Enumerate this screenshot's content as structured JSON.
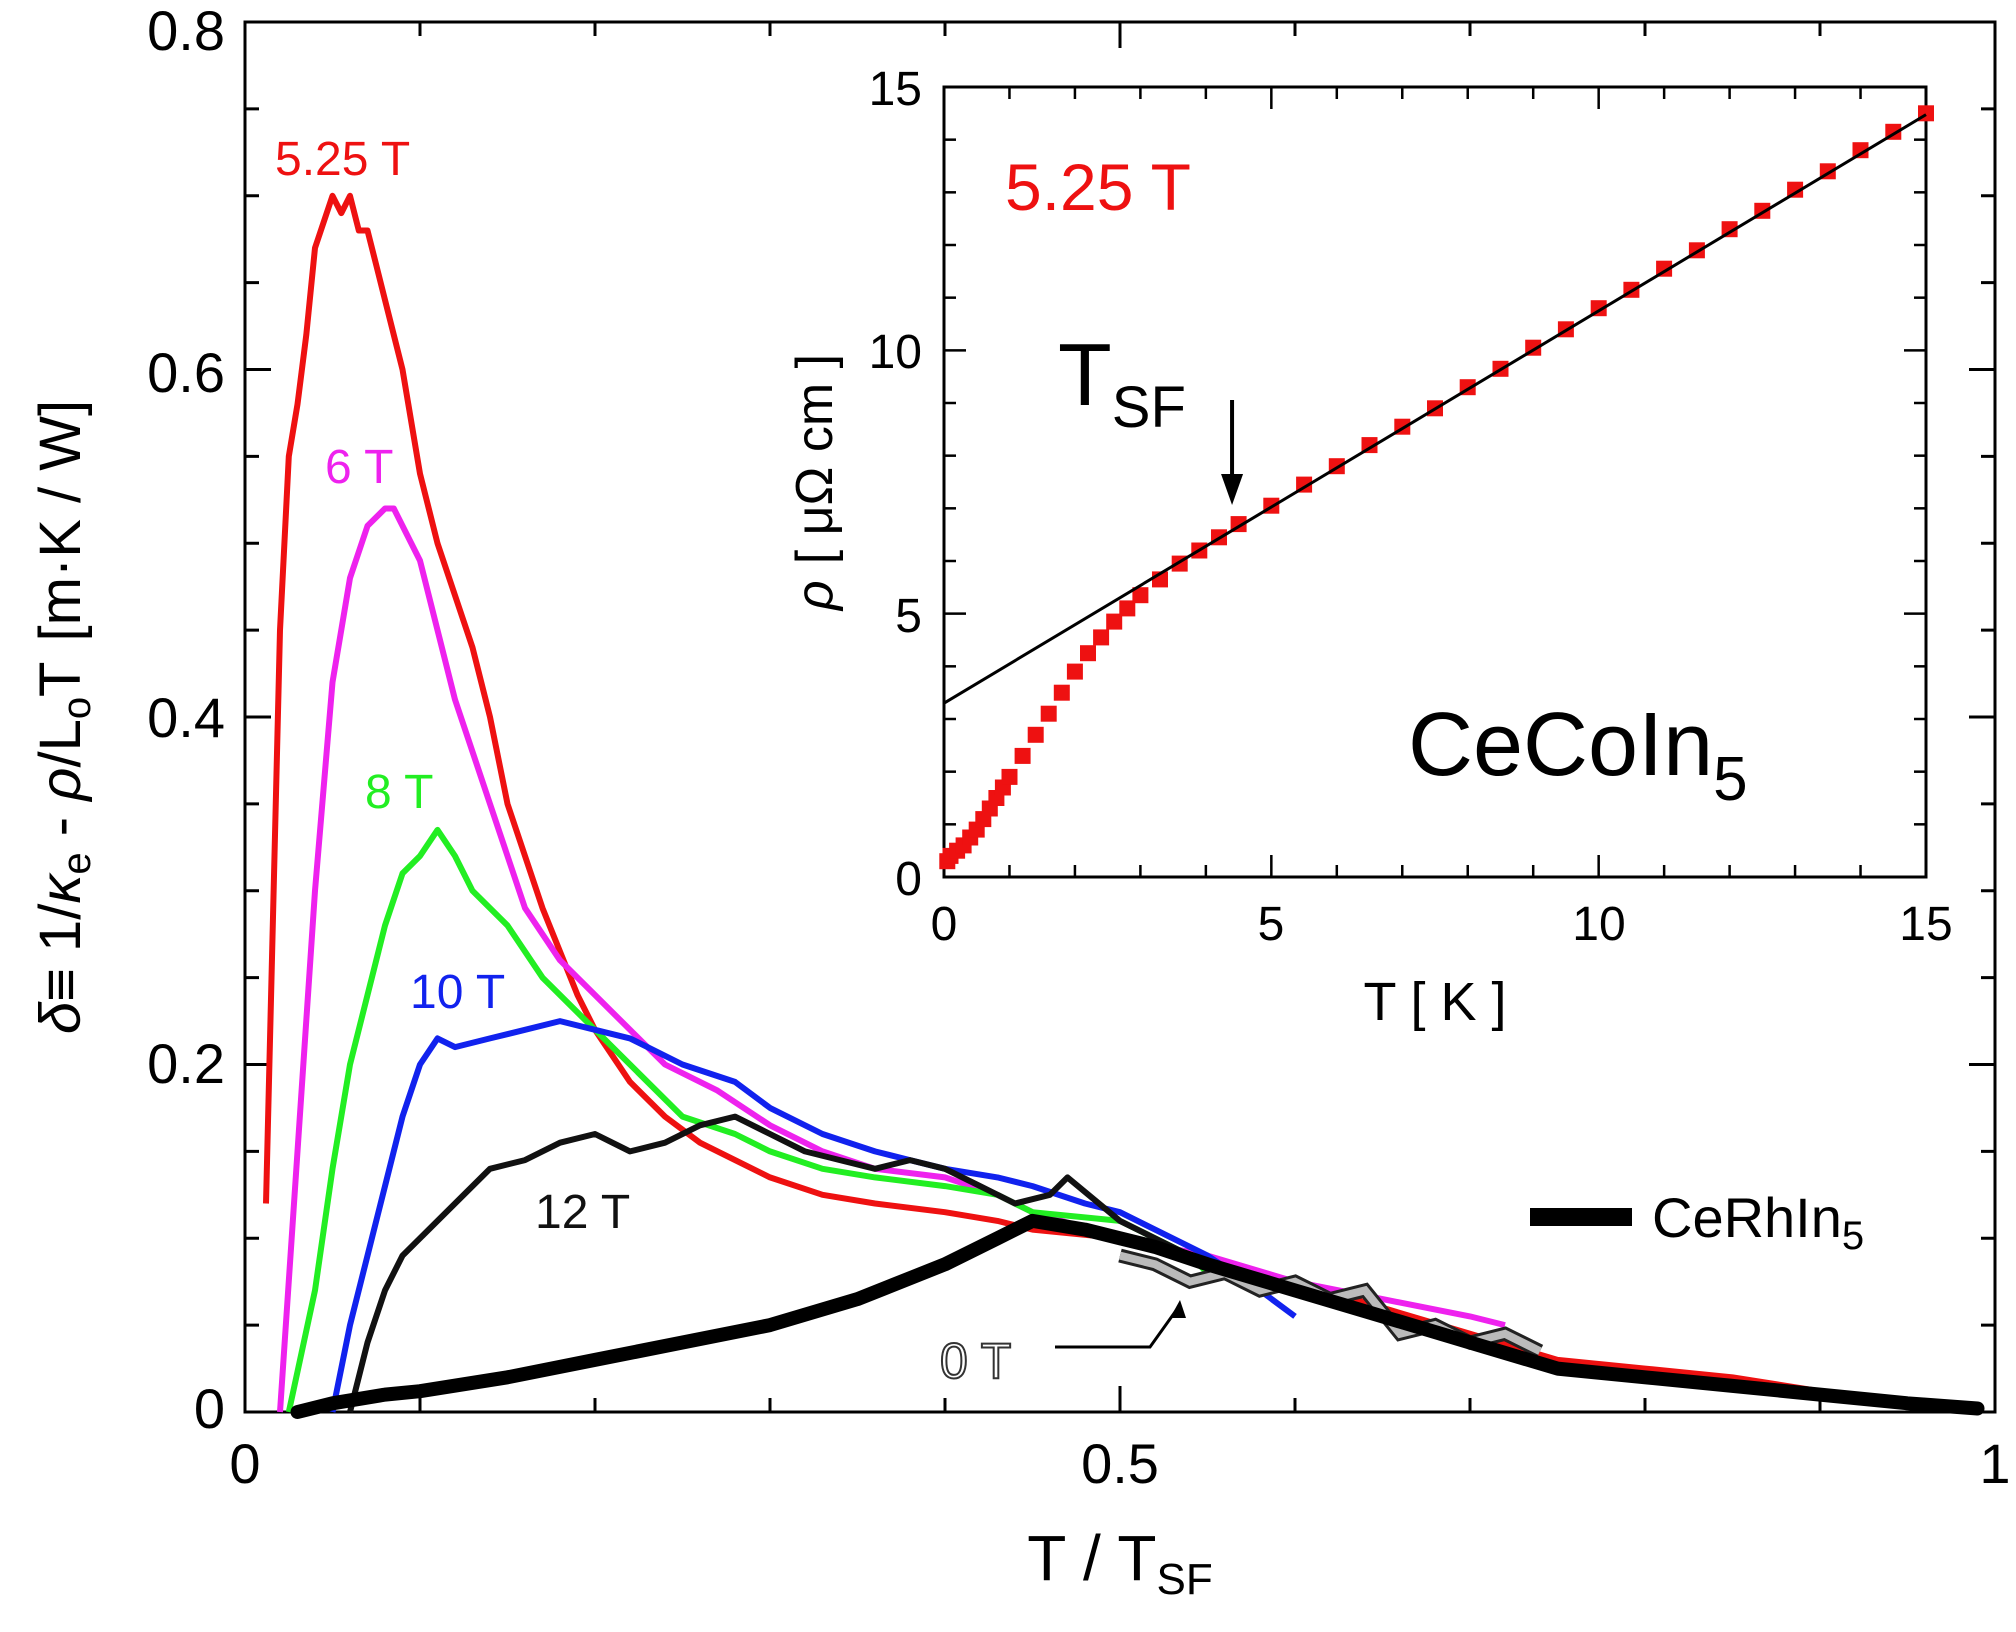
{
  "chart_data": [
    {
      "type": "line",
      "xlabel": "T / T",
      "xlabel_sub": "SF",
      "ylabel_parts": {
        "delta": "δ",
        "eq": "≡ 1/",
        "kappa": "κ",
        "kappa_sub": "e",
        "minus": " - ",
        "rho": "ρ",
        "slash_L": "/L",
        "L_sub": "o",
        "T": "T",
        "units": "[m·K / W]"
      },
      "xlim": [
        0,
        1
      ],
      "ylim": [
        0,
        0.8
      ],
      "xticks": [
        0,
        0.5,
        1
      ],
      "xtick_labels": [
        "0",
        "0.5",
        "1"
      ],
      "yticks": [
        0,
        0.2,
        0.4,
        0.6,
        0.8
      ],
      "ytick_labels": [
        "0",
        "0.2",
        "0.4",
        "0.6",
        "0.8"
      ],
      "legend": {
        "label": "CeRhIn",
        "sub": "5",
        "position": "right"
      },
      "series": [
        {
          "name": "5.25 T",
          "color": "#ee1111",
          "x": [
            0.012,
            0.02,
            0.025,
            0.03,
            0.035,
            0.04,
            0.05,
            0.055,
            0.06,
            0.065,
            0.07,
            0.075,
            0.08,
            0.09,
            0.1,
            0.11,
            0.12,
            0.13,
            0.14,
            0.15,
            0.17,
            0.19,
            0.2,
            0.22,
            0.24,
            0.26,
            0.28,
            0.3,
            0.33,
            0.36,
            0.4,
            0.43,
            0.45,
            0.5,
            0.55,
            0.6,
            0.65,
            0.7,
            0.75,
            0.8,
            0.85,
            0.9,
            0.95,
            0.99
          ],
          "y": [
            0.12,
            0.45,
            0.55,
            0.58,
            0.62,
            0.67,
            0.7,
            0.69,
            0.7,
            0.68,
            0.68,
            0.66,
            0.64,
            0.6,
            0.54,
            0.5,
            0.47,
            0.44,
            0.4,
            0.35,
            0.29,
            0.24,
            0.22,
            0.19,
            0.17,
            0.155,
            0.145,
            0.135,
            0.125,
            0.12,
            0.115,
            0.11,
            0.105,
            0.1,
            0.085,
            0.075,
            0.06,
            0.045,
            0.03,
            0.025,
            0.02,
            0.012,
            0.005,
            0.002
          ],
          "label": "5.25 T"
        },
        {
          "name": "6 T",
          "color": "#ee22ee",
          "x": [
            0.02,
            0.03,
            0.04,
            0.05,
            0.06,
            0.07,
            0.08,
            0.085,
            0.1,
            0.11,
            0.12,
            0.14,
            0.16,
            0.18,
            0.2,
            0.22,
            0.24,
            0.27,
            0.3,
            0.33,
            0.36,
            0.4,
            0.43,
            0.45,
            0.5,
            0.55,
            0.6,
            0.65,
            0.7,
            0.72
          ],
          "y": [
            0.0,
            0.15,
            0.3,
            0.42,
            0.48,
            0.51,
            0.52,
            0.52,
            0.49,
            0.45,
            0.41,
            0.35,
            0.29,
            0.26,
            0.24,
            0.22,
            0.2,
            0.185,
            0.165,
            0.15,
            0.14,
            0.135,
            0.125,
            0.115,
            0.1,
            0.09,
            0.075,
            0.065,
            0.055,
            0.05
          ],
          "label": "6 T"
        },
        {
          "name": "8 T",
          "color": "#22ee22",
          "x": [
            0.025,
            0.04,
            0.05,
            0.06,
            0.07,
            0.08,
            0.09,
            0.1,
            0.11,
            0.12,
            0.13,
            0.14,
            0.15,
            0.17,
            0.2,
            0.22,
            0.25,
            0.28,
            0.3,
            0.33,
            0.36,
            0.4,
            0.43,
            0.45,
            0.5,
            0.52,
            0.54,
            0.55
          ],
          "y": [
            0.0,
            0.07,
            0.14,
            0.2,
            0.24,
            0.28,
            0.31,
            0.32,
            0.335,
            0.32,
            0.3,
            0.29,
            0.28,
            0.25,
            0.22,
            0.2,
            0.17,
            0.16,
            0.15,
            0.14,
            0.135,
            0.13,
            0.125,
            0.115,
            0.11,
            0.1,
            0.09,
            0.08
          ],
          "label": "8 T"
        },
        {
          "name": "10 T",
          "color": "#1122ee",
          "x": [
            0.05,
            0.06,
            0.07,
            0.08,
            0.09,
            0.1,
            0.11,
            0.12,
            0.14,
            0.16,
            0.18,
            0.2,
            0.22,
            0.25,
            0.28,
            0.3,
            0.33,
            0.36,
            0.38,
            0.4,
            0.43,
            0.45,
            0.48,
            0.5,
            0.52,
            0.55,
            0.58,
            0.6
          ],
          "y": [
            0.0,
            0.05,
            0.09,
            0.13,
            0.17,
            0.2,
            0.215,
            0.21,
            0.215,
            0.22,
            0.225,
            0.22,
            0.215,
            0.2,
            0.19,
            0.175,
            0.16,
            0.15,
            0.145,
            0.14,
            0.135,
            0.13,
            0.12,
            0.115,
            0.105,
            0.09,
            0.07,
            0.055
          ],
          "label": "10 T"
        },
        {
          "name": "12 T",
          "color": "#111111",
          "x": [
            0.06,
            0.07,
            0.08,
            0.09,
            0.1,
            0.12,
            0.14,
            0.16,
            0.18,
            0.2,
            0.22,
            0.24,
            0.26,
            0.28,
            0.3,
            0.32,
            0.34,
            0.36,
            0.38,
            0.4,
            0.42,
            0.44,
            0.46,
            0.47,
            0.5,
            0.52,
            0.55,
            0.6
          ],
          "y": [
            0.0,
            0.04,
            0.07,
            0.09,
            0.1,
            0.12,
            0.14,
            0.145,
            0.155,
            0.16,
            0.15,
            0.155,
            0.165,
            0.17,
            0.16,
            0.15,
            0.145,
            0.14,
            0.145,
            0.14,
            0.13,
            0.12,
            0.125,
            0.135,
            0.11,
            0.1,
            0.085,
            0.07
          ],
          "label": "12 T"
        },
        {
          "name": "0 T",
          "color": "#bbbbbb",
          "outline": "#222222",
          "x": [
            0.5,
            0.52,
            0.54,
            0.56,
            0.58,
            0.6,
            0.62,
            0.64,
            0.66,
            0.68,
            0.7,
            0.72,
            0.74
          ],
          "y": [
            0.09,
            0.085,
            0.075,
            0.08,
            0.07,
            0.075,
            0.065,
            0.07,
            0.045,
            0.05,
            0.04,
            0.045,
            0.035
          ],
          "label": "0 T"
        },
        {
          "name": "CeRhIn5",
          "color": "#000000",
          "x": [
            0.03,
            0.05,
            0.08,
            0.1,
            0.15,
            0.2,
            0.25,
            0.3,
            0.35,
            0.4,
            0.43,
            0.45,
            0.48,
            0.5,
            0.52,
            0.55,
            0.6,
            0.65,
            0.7,
            0.75,
            0.8,
            0.85,
            0.9,
            0.95,
            0.99
          ],
          "y": [
            0.0,
            0.005,
            0.01,
            0.012,
            0.02,
            0.03,
            0.04,
            0.05,
            0.065,
            0.085,
            0.1,
            0.11,
            0.105,
            0.1,
            0.095,
            0.085,
            0.07,
            0.055,
            0.04,
            0.025,
            0.02,
            0.015,
            0.01,
            0.005,
            0.002
          ]
        }
      ],
      "annotations": [
        {
          "text": "5.25 T",
          "color": "#ee1111"
        },
        {
          "text": "6 T",
          "color": "#ee22ee"
        },
        {
          "text": "8 T",
          "color": "#22ee22"
        },
        {
          "text": "10 T",
          "color": "#1122ee"
        },
        {
          "text": "12 T",
          "color": "#111111"
        },
        {
          "text": "0 T",
          "color": "#ffffff"
        }
      ]
    },
    {
      "type": "scatter",
      "xlabel": "T [ K ]",
      "ylabel_parts": {
        "rho": "ρ",
        "units": "[ μΩ cm ]"
      },
      "xlim": [
        0,
        15
      ],
      "ylim": [
        0,
        15
      ],
      "xticks": [
        0,
        5,
        10,
        15
      ],
      "xtick_labels": [
        "0",
        "5",
        "10",
        "15"
      ],
      "yticks": [
        0,
        5,
        10,
        15
      ],
      "ytick_labels": [
        "0",
        "5",
        "10",
        "15"
      ],
      "field_label": "5.25 T",
      "material": {
        "main": "CeCoIn",
        "sub": "5"
      },
      "arrow_label": {
        "main": "T",
        "sub": "SF"
      },
      "arrow_x": 4.4,
      "fit_line": {
        "slope": 0.745,
        "intercept": 3.3,
        "x_range": [
          0,
          15
        ]
      },
      "series": [
        {
          "name": "5.25 T",
          "color": "#ee1111",
          "x": [
            0.05,
            0.1,
            0.2,
            0.3,
            0.4,
            0.5,
            0.6,
            0.7,
            0.8,
            0.9,
            1.0,
            1.2,
            1.4,
            1.6,
            1.8,
            2.0,
            2.2,
            2.4,
            2.6,
            2.8,
            3.0,
            3.3,
            3.6,
            3.9,
            4.2,
            4.5,
            5.0,
            5.5,
            6.0,
            6.5,
            7.0,
            7.5,
            8.0,
            8.5,
            9.0,
            9.5,
            10.0,
            10.5,
            11.0,
            11.5,
            12.0,
            12.5,
            13.0,
            13.5,
            14.0,
            14.5,
            15.0
          ],
          "y": [
            0.3,
            0.4,
            0.5,
            0.6,
            0.75,
            0.9,
            1.1,
            1.3,
            1.5,
            1.7,
            1.9,
            2.3,
            2.7,
            3.1,
            3.5,
            3.9,
            4.25,
            4.55,
            4.85,
            5.1,
            5.35,
            5.65,
            5.95,
            6.2,
            6.45,
            6.7,
            7.05,
            7.45,
            7.8,
            8.2,
            8.55,
            8.9,
            9.3,
            9.65,
            10.05,
            10.4,
            10.8,
            11.15,
            11.55,
            11.9,
            12.3,
            12.65,
            13.05,
            13.4,
            13.8,
            14.15,
            14.5
          ]
        }
      ]
    }
  ]
}
